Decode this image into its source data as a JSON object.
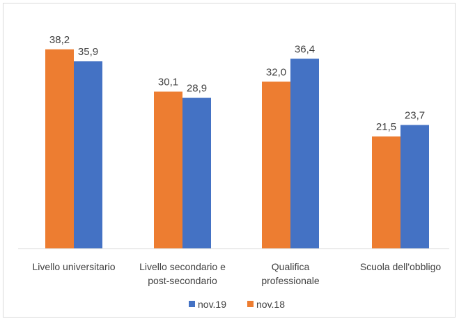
{
  "chart_data": {
    "type": "bar",
    "title": "",
    "xlabel": "",
    "ylabel": "",
    "categories": [
      [
        "Livello universitario"
      ],
      [
        "Livello secondario e",
        "post-secondario"
      ],
      [
        "Qualifica",
        "professionale"
      ],
      [
        "Scuola dell'obbligo"
      ]
    ],
    "series": [
      {
        "name": "nov.18",
        "color": "#ED7D31",
        "values": [
          38.2,
          30.1,
          32.0,
          21.5
        ],
        "labels": [
          "38,2",
          "30,1",
          "32,0",
          "21,5"
        ]
      },
      {
        "name": "nov.19",
        "color": "#4472C4",
        "values": [
          35.9,
          28.9,
          36.4,
          23.7
        ],
        "labels": [
          "35,9",
          "28,9",
          "36,4",
          "23,7"
        ]
      }
    ],
    "legend": {
      "placement": "bottom",
      "order": [
        "nov.19",
        "nov.18"
      ]
    },
    "ylim": [
      0,
      40
    ],
    "grid": false
  }
}
